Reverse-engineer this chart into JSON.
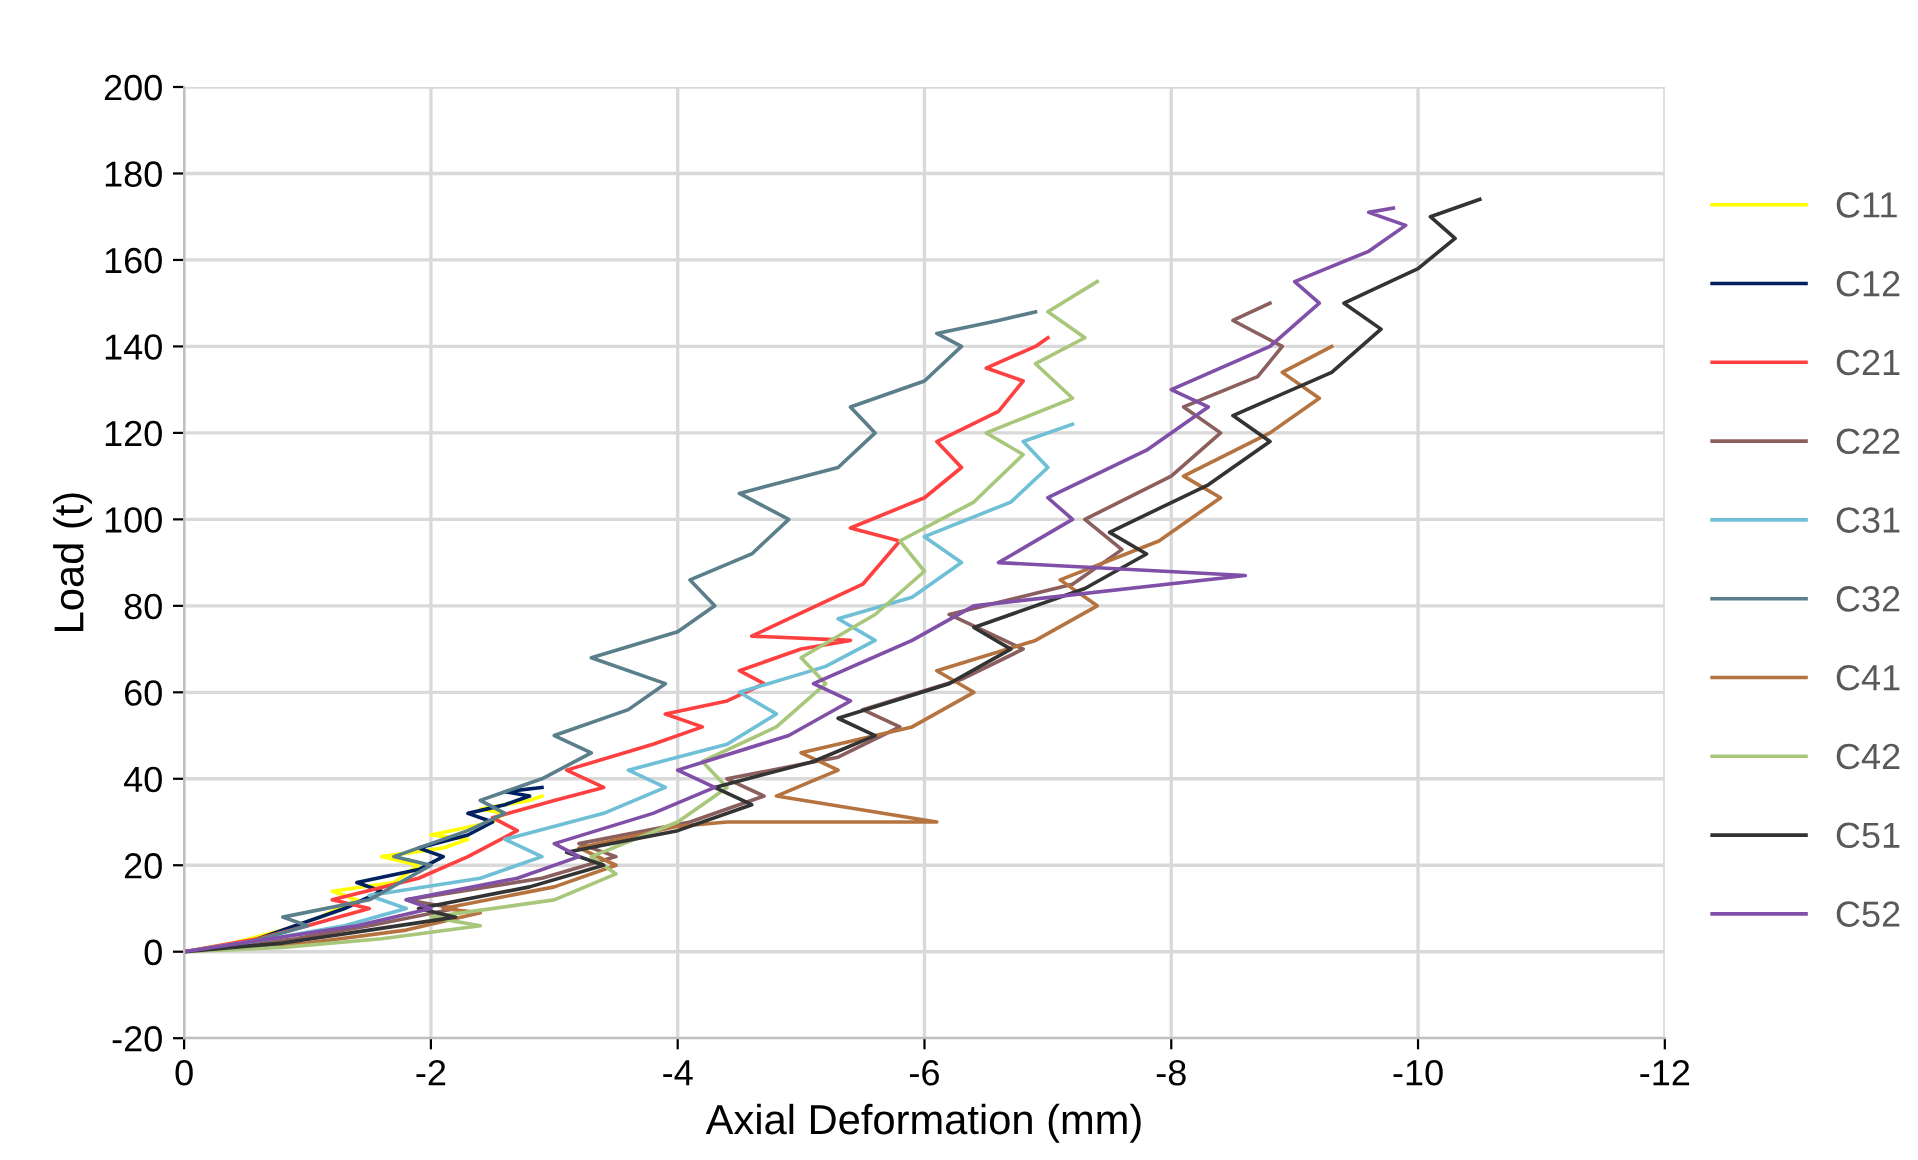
{
  "chart_data": {
    "type": "line",
    "xlabel": "Axial Deformation (mm)",
    "ylabel": "Load (t)",
    "xlim": [
      0,
      -12
    ],
    "xticks": [
      0,
      -2,
      -4,
      -6,
      -8,
      -10,
      -12
    ],
    "ylim": [
      -20,
      200
    ],
    "yticks": [
      -20,
      0,
      20,
      40,
      60,
      80,
      100,
      120,
      140,
      160,
      180,
      200
    ],
    "grid": true,
    "legend": "right",
    "marker": "none",
    "line_style": "solid",
    "series": [
      {
        "name": "C11",
        "color": "#ffff00",
        "x": [
          0,
          -0.4,
          -0.8,
          -1.1,
          -1.4,
          -1.2,
          -1.7,
          -1.9,
          -1.6,
          -2.1,
          -2.3,
          -2.0,
          -2.5,
          -2.6,
          -2.4,
          -2.8,
          -2.9
        ],
        "values": [
          0,
          2,
          5,
          8,
          12,
          14,
          16,
          20,
          22,
          24,
          26,
          27,
          30,
          32,
          33,
          35,
          36
        ]
      },
      {
        "name": "C12",
        "color": "#002060",
        "x": [
          0,
          -0.5,
          -0.9,
          -1.3,
          -1.6,
          -1.4,
          -1.9,
          -2.1,
          -1.9,
          -2.3,
          -2.5,
          -2.3,
          -2.6,
          -2.8,
          -2.6,
          -2.9
        ],
        "values": [
          0,
          2,
          6,
          10,
          14,
          16,
          19,
          22,
          24,
          27,
          30,
          32,
          34,
          36,
          37,
          38
        ]
      },
      {
        "name": "C21",
        "color": "#ff4040",
        "x": [
          0,
          -0.6,
          -1.0,
          -1.5,
          -1.2,
          -1.9,
          -2.3,
          -2.7,
          -2.5,
          -3.0,
          -3.4,
          -3.1,
          -3.8,
          -4.2,
          -3.9,
          -4.4,
          -4.7,
          -4.5,
          -5.0,
          -5.4,
          -4.6,
          -5.5,
          -5.8,
          -5.4,
          -6.0,
          -6.3,
          -6.1,
          -6.6,
          -6.8,
          -6.5,
          -6.9,
          -7.0
        ],
        "values": [
          0,
          3,
          6,
          10,
          12,
          17,
          22,
          28,
          31,
          35,
          38,
          42,
          48,
          52,
          55,
          58,
          62,
          65,
          70,
          72,
          73,
          85,
          95,
          98,
          105,
          112,
          118,
          125,
          132,
          135,
          140,
          142
        ]
      },
      {
        "name": "C22",
        "color": "#8c5f5f",
        "x": [
          0,
          -0.9,
          -1.5,
          -2.2,
          -1.8,
          -2.9,
          -3.5,
          -3.2,
          -4.1,
          -4.7,
          -4.4,
          -5.3,
          -5.8,
          -5.5,
          -6.3,
          -6.8,
          -6.2,
          -7.2,
          -7.6,
          -7.3,
          -8.0,
          -8.4,
          -8.1,
          -8.7,
          -8.9,
          -8.5,
          -8.8
        ],
        "values": [
          0,
          3,
          6,
          10,
          12,
          17,
          22,
          25,
          30,
          36,
          40,
          45,
          52,
          56,
          63,
          70,
          78,
          85,
          93,
          100,
          110,
          120,
          126,
          133,
          140,
          146,
          150
        ]
      },
      {
        "name": "C31",
        "color": "#6fbfd6",
        "x": [
          0,
          -0.7,
          -1.3,
          -1.8,
          -1.5,
          -2.4,
          -2.9,
          -2.6,
          -3.4,
          -3.9,
          -3.6,
          -4.4,
          -4.8,
          -4.5,
          -5.2,
          -5.6,
          -5.3,
          -5.9,
          -6.3,
          -6.0,
          -6.7,
          -7.0,
          -6.8,
          -7.2
        ],
        "values": [
          0,
          3,
          6,
          10,
          13,
          17,
          22,
          26,
          32,
          38,
          42,
          48,
          55,
          60,
          66,
          72,
          77,
          82,
          90,
          96,
          104,
          112,
          118,
          122
        ]
      },
      {
        "name": "C32",
        "color": "#5a7f8a",
        "x": [
          0,
          -0.5,
          -1.0,
          -0.8,
          -1.5,
          -2.0,
          -1.7,
          -2.3,
          -2.6,
          -2.4,
          -2.9,
          -3.3,
          -3.0,
          -3.6,
          -3.9,
          -3.3,
          -4.0,
          -4.3,
          -4.1,
          -4.6,
          -4.9,
          -4.5,
          -5.3,
          -5.6,
          -5.4,
          -6.0,
          -6.3,
          -6.1,
          -6.6,
          -6.9
        ],
        "values": [
          0,
          2,
          6,
          8,
          12,
          20,
          22,
          28,
          32,
          35,
          40,
          46,
          50,
          56,
          62,
          68,
          74,
          80,
          86,
          92,
          100,
          106,
          112,
          120,
          126,
          132,
          140,
          143,
          146,
          148
        ]
      },
      {
        "name": "C41",
        "color": "#b57340",
        "x": [
          0,
          -1.0,
          -1.8,
          -2.4,
          -2.1,
          -3.0,
          -3.5,
          -3.2,
          -4.0,
          -4.4,
          -6.1,
          -4.8,
          -5.3,
          -5.0,
          -5.9,
          -6.4,
          -6.1,
          -6.9,
          -7.4,
          -7.1,
          -7.9,
          -8.4,
          -8.1,
          -8.8,
          -9.2,
          -8.9,
          -9.3
        ],
        "values": [
          0,
          2,
          5,
          9,
          10,
          15,
          20,
          24,
          29,
          30,
          30,
          36,
          42,
          46,
          52,
          60,
          65,
          72,
          80,
          86,
          95,
          105,
          110,
          120,
          128,
          134,
          140
        ]
      },
      {
        "name": "C42",
        "color": "#a9c77a",
        "x": [
          0,
          -0.8,
          -1.6,
          -2.4,
          -2.0,
          -3.0,
          -3.5,
          -3.3,
          -4.0,
          -4.4,
          -4.2,
          -4.8,
          -5.2,
          -5.0,
          -5.6,
          -6.0,
          -5.8,
          -6.4,
          -6.8,
          -6.5,
          -7.2,
          -6.9,
          -7.3,
          -7.0,
          -7.4
        ],
        "values": [
          0,
          1,
          3,
          6,
          8,
          12,
          18,
          22,
          30,
          38,
          44,
          52,
          62,
          68,
          78,
          88,
          95,
          104,
          115,
          120,
          128,
          136,
          142,
          148,
          155
        ]
      },
      {
        "name": "C51",
        "color": "#333333",
        "x": [
          0,
          -0.8,
          -1.5,
          -2.2,
          -1.9,
          -2.8,
          -3.4,
          -3.1,
          -4.0,
          -4.6,
          -4.3,
          -5.1,
          -5.6,
          -5.3,
          -6.2,
          -6.7,
          -6.4,
          -7.3,
          -7.8,
          -7.5,
          -8.3,
          -8.8,
          -8.5,
          -9.3,
          -9.7,
          -9.4,
          -10.0,
          -10.3,
          -10.1,
          -10.5
        ],
        "values": [
          0,
          2,
          5,
          8,
          10,
          15,
          20,
          23,
          28,
          34,
          38,
          44,
          50,
          54,
          62,
          70,
          75,
          84,
          92,
          97,
          108,
          118,
          124,
          134,
          144,
          150,
          158,
          165,
          170,
          174
        ]
      },
      {
        "name": "C52",
        "color": "#8050a8",
        "x": [
          0,
          -0.7,
          -1.4,
          -2.0,
          -1.8,
          -2.7,
          -3.2,
          -3.0,
          -3.8,
          -4.3,
          -4.0,
          -4.9,
          -5.4,
          -5.1,
          -5.9,
          -6.4,
          -8.6,
          -6.6,
          -7.2,
          -7.0,
          -7.8,
          -8.3,
          -8.0,
          -8.8,
          -9.2,
          -9.0,
          -9.6,
          -9.9,
          -9.6,
          -9.8
        ],
        "values": [
          0,
          3,
          6,
          10,
          12,
          17,
          22,
          25,
          32,
          38,
          42,
          50,
          58,
          62,
          72,
          80,
          87,
          90,
          100,
          105,
          116,
          126,
          130,
          140,
          150,
          155,
          162,
          168,
          171,
          172
        ]
      }
    ]
  }
}
